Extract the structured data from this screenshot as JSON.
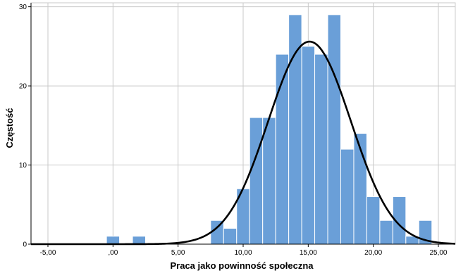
{
  "chart_data": {
    "type": "bar",
    "title": "",
    "xlabel": "Praca jako powinność społeczna",
    "ylabel": "Częstość",
    "xlim": [
      -6.3,
      26.3
    ],
    "ylim": [
      0,
      30.5
    ],
    "x_ticks": [
      -5,
      0,
      5,
      10,
      15,
      20,
      25
    ],
    "x_tick_labels": [
      "-5,00",
      ",00",
      "5,00",
      "10,00",
      "15,00",
      "20,00",
      "25,00"
    ],
    "y_ticks": [
      0,
      10,
      20,
      30
    ],
    "y_tick_labels": [
      "0",
      "10",
      "20",
      "30"
    ],
    "grid": true,
    "bar_color": "#6a9fd8",
    "bar_edge_color": "#ffffff",
    "curve_color": "#000000",
    "bins": [
      {
        "start": -0.5,
        "end": 0.5,
        "count": 1
      },
      {
        "start": 1.5,
        "end": 2.5,
        "count": 1
      },
      {
        "start": 7.5,
        "end": 8.5,
        "count": 3
      },
      {
        "start": 8.5,
        "end": 9.5,
        "count": 2
      },
      {
        "start": 9.5,
        "end": 10.5,
        "count": 7
      },
      {
        "start": 10.5,
        "end": 11.5,
        "count": 16
      },
      {
        "start": 11.5,
        "end": 12.5,
        "count": 16
      },
      {
        "start": 12.5,
        "end": 13.5,
        "count": 24
      },
      {
        "start": 13.5,
        "end": 14.5,
        "count": 29
      },
      {
        "start": 14.5,
        "end": 15.5,
        "count": 25
      },
      {
        "start": 15.5,
        "end": 16.5,
        "count": 24
      },
      {
        "start": 16.5,
        "end": 17.5,
        "count": 29
      },
      {
        "start": 17.5,
        "end": 18.5,
        "count": 12
      },
      {
        "start": 18.5,
        "end": 19.5,
        "count": 14
      },
      {
        "start": 19.5,
        "end": 20.5,
        "count": 6
      },
      {
        "start": 20.5,
        "end": 21.5,
        "count": 3
      },
      {
        "start": 21.5,
        "end": 22.5,
        "count": 6
      },
      {
        "start": 22.5,
        "end": 23.5,
        "count": 1
      },
      {
        "start": 23.5,
        "end": 24.5,
        "count": 3
      }
    ],
    "normal_curve": {
      "mean": 15.1,
      "sd": 3.18,
      "peak": 25.6
    }
  }
}
